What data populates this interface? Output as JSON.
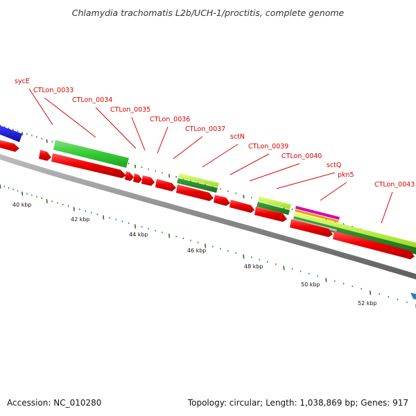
{
  "title": "Chlamydia trachomatis L2b/UCH-1/proctitis, complete genome",
  "gene_labels": [
    "sycE",
    "CTLon_0033",
    "CTLon_0034",
    "CTLon_0035",
    "CTLon_0036",
    "CTLon_0037",
    "sctN",
    "CTLon_0039",
    "CTLon_0040",
    "sctQ",
    "pkn5",
    "CTLon_0043"
  ],
  "scale_labels": [
    "40 kbp",
    "42 kbp",
    "44 kbp",
    "46 kbp",
    "48 kbp",
    "50 kbp",
    "52 kbp"
  ],
  "footer": {
    "accession": "Accession: NC_010280",
    "summary": "Topology: circular; Length: 1,038,869 bp; Genes: 917"
  },
  "colors": {
    "backbone": "#8a8a8a",
    "cds": "#ee0000",
    "feature_green": "#33cc33",
    "feature_lime": "#bbee33",
    "feature_blue": "#1010dd",
    "feature_magenta": "#dd00aa",
    "feature_steel": "#3a7ab0",
    "label": "#dd0000",
    "tick": "#1a7a1a"
  }
}
